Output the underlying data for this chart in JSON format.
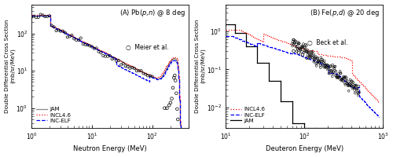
{
  "panel_A": {
    "title": "(A) Pb($p$,$n$) @ 8 deg",
    "xlabel": "Neutron Energy (MeV)",
    "ylabel": "Double Differential Cross Section\n(mb/sr/MeV)",
    "xlim": [
      1.0,
      400
    ],
    "ylim": [
      0.3,
      600
    ],
    "legend_author": "Meier et al.",
    "JAM_color": "#888888",
    "INCL_color": "#ff0000",
    "ELF_color": "#0000ff"
  },
  "panel_B": {
    "title": "(B) Fe($p$,$d$) @ 20 deg",
    "xlabel": "Deuteron Energy (MeV)",
    "ylabel": "Double Differential Cross Section\n(mb/sr/MeV)",
    "xlim": [
      10,
      1000
    ],
    "ylim": [
      0.003,
      5
    ],
    "legend_author": "Beck et al.",
    "JAM_color": "#000000",
    "INCL_color": "#ff0000",
    "ELF_color": "#0000ff"
  },
  "background_color": "#ffffff",
  "figsize": [
    5.0,
    2.0
  ],
  "dpi": 100
}
